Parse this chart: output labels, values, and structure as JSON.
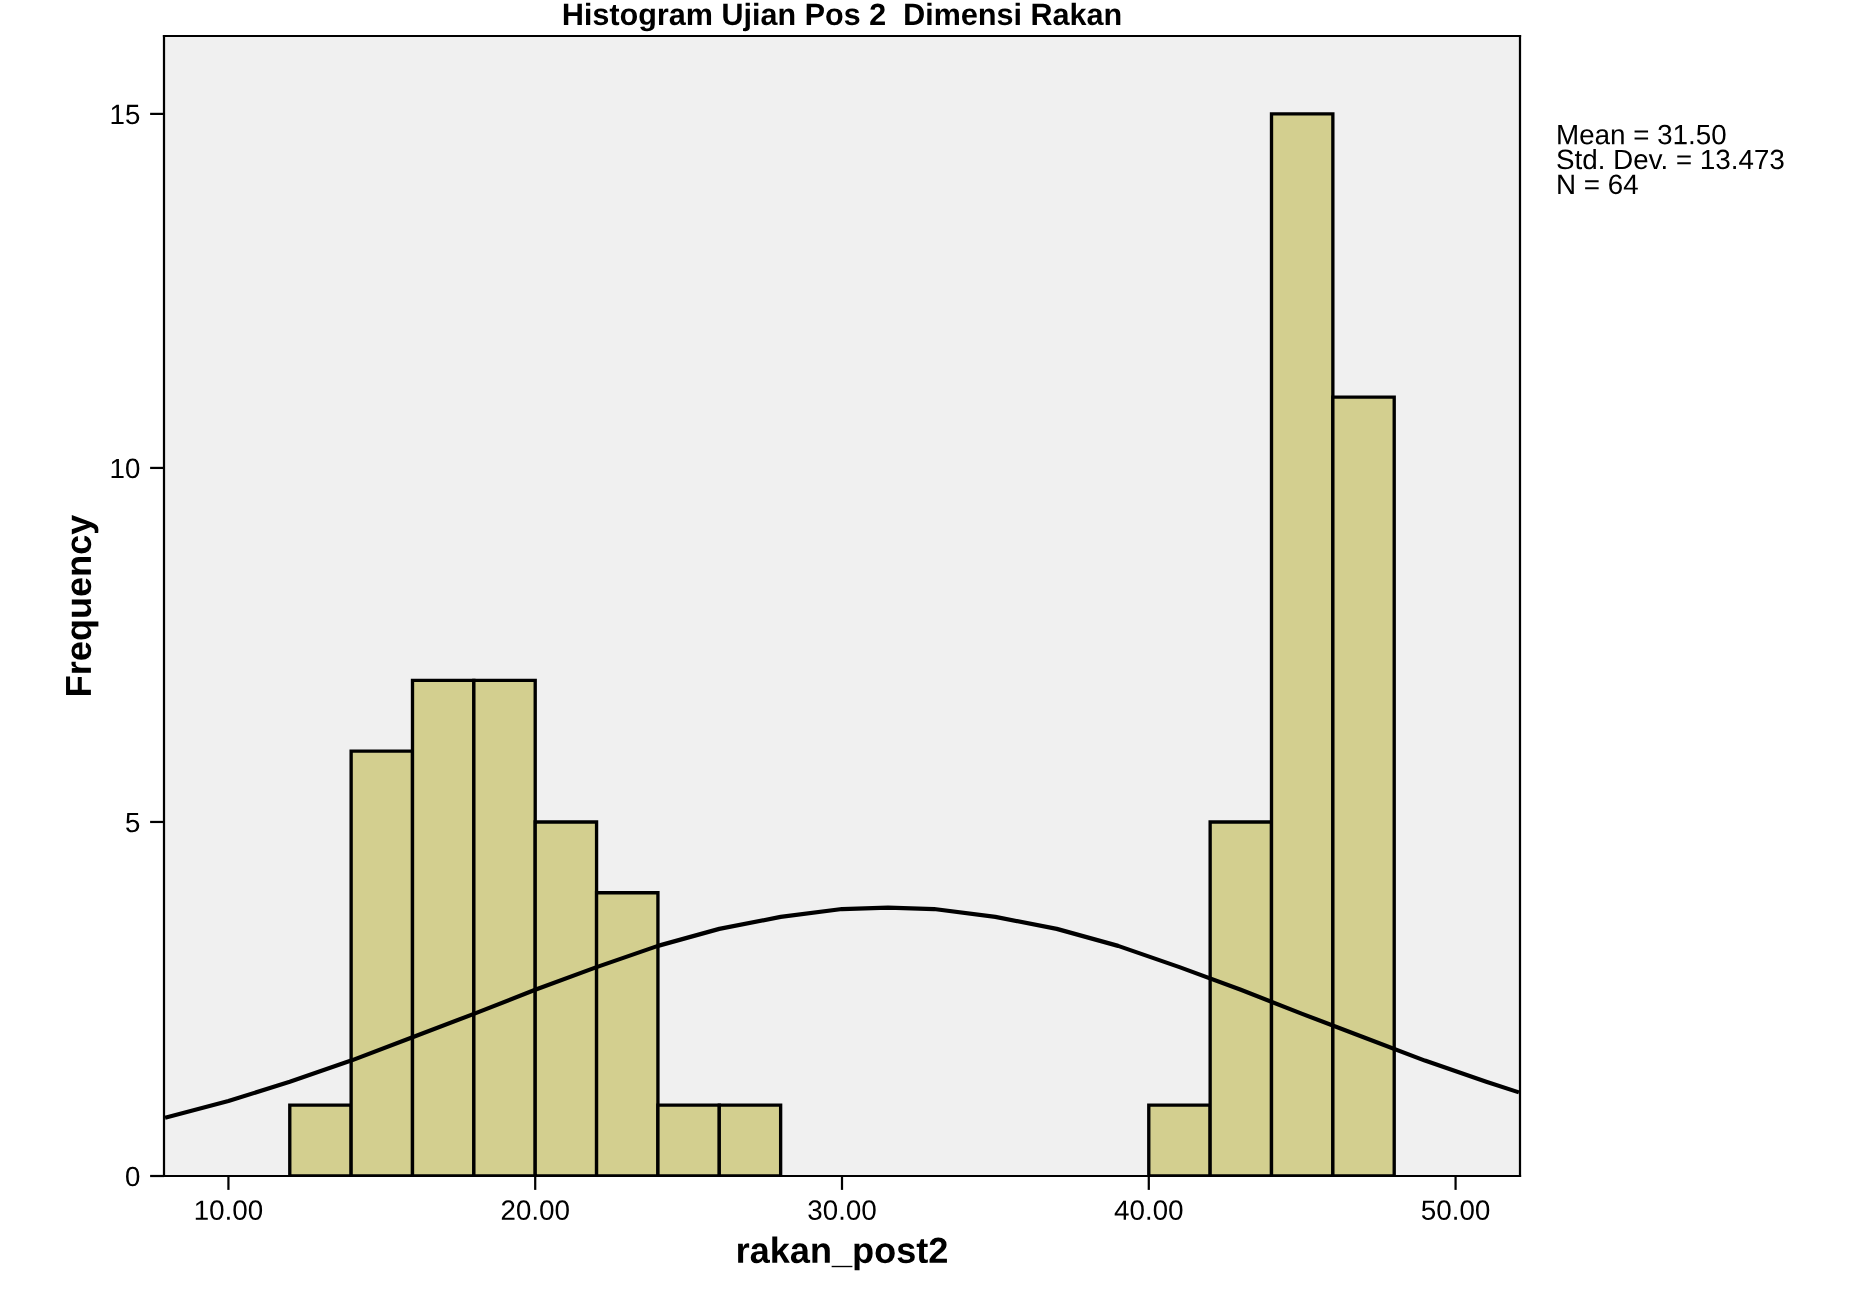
{
  "chart_data": {
    "type": "histogram",
    "title": "Histogram Ujian Pos 2  Dimensi Rakan",
    "xlabel": "rakan_post2",
    "ylabel": "Frequency",
    "bins": [
      12,
      14,
      16,
      18,
      20,
      22,
      24,
      26,
      28,
      30,
      32,
      34,
      36,
      38,
      40,
      42,
      44,
      46,
      48
    ],
    "values": [
      1,
      6,
      7,
      7,
      5,
      4,
      1,
      1,
      0,
      0,
      0,
      0,
      0,
      0,
      1,
      5,
      15,
      11
    ],
    "color": "#d3cf8f",
    "series": [
      {
        "type": "line",
        "color": "#000000",
        "x": [
          8,
          10,
          12,
          14,
          16,
          18,
          20,
          22,
          24,
          26,
          28,
          30,
          31.5,
          33,
          35,
          37,
          39,
          41,
          43,
          45,
          47,
          49,
          51,
          52
        ],
        "values": [
          0.83,
          1.06,
          1.33,
          1.63,
          1.96,
          2.29,
          2.63,
          2.95,
          3.25,
          3.49,
          3.66,
          3.77,
          3.79,
          3.77,
          3.66,
          3.49,
          3.25,
          2.95,
          2.63,
          2.29,
          1.96,
          1.63,
          1.33,
          1.19
        ]
      }
    ],
    "xlim": [
      7.9,
      52.1
    ],
    "xticks": [
      {
        "value": 10,
        "label": "10.00"
      },
      {
        "value": 20,
        "label": "20.00"
      },
      {
        "value": 30,
        "label": "30.00"
      },
      {
        "value": 40,
        "label": "40.00"
      },
      {
        "value": 50,
        "label": "50.00"
      }
    ],
    "ylim": [
      0,
      16.1
    ],
    "yticks": [
      0,
      5,
      10,
      15
    ],
    "annotations": [
      "Mean = 31.50\nStd. Dev. = 13.473\nN = 64"
    ],
    "grid": false,
    "legend": false
  }
}
